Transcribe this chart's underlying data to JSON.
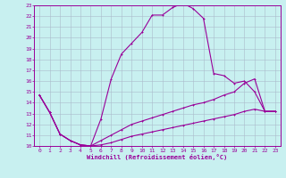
{
  "xlabel": "Windchill (Refroidissement éolien,°C)",
  "bg_color": "#c8f0f0",
  "line_color": "#990099",
  "grid_color": "#aabbcc",
  "xlim": [
    -0.5,
    23.5
  ],
  "ylim": [
    10,
    23
  ],
  "xticks": [
    0,
    1,
    2,
    3,
    4,
    5,
    6,
    7,
    8,
    9,
    10,
    11,
    12,
    13,
    14,
    15,
    16,
    17,
    18,
    19,
    20,
    21,
    22,
    23
  ],
  "yticks": [
    10,
    11,
    12,
    13,
    14,
    15,
    16,
    17,
    18,
    19,
    20,
    21,
    22,
    23
  ],
  "curve1_x": [
    0,
    1,
    2,
    3,
    4,
    5,
    6,
    7,
    8,
    9,
    10,
    11,
    12,
    13,
    14,
    15,
    16,
    17,
    18,
    19,
    20,
    21,
    22,
    23
  ],
  "curve1_y": [
    14.7,
    13.1,
    11.1,
    10.5,
    10.1,
    10.0,
    12.5,
    16.2,
    18.5,
    19.5,
    20.5,
    22.1,
    22.1,
    22.8,
    23.2,
    22.7,
    21.8,
    16.7,
    16.5,
    15.8,
    16.0,
    15.0,
    13.2,
    13.2
  ],
  "curve2_x": [
    0,
    1,
    2,
    3,
    4,
    5,
    6,
    7,
    8,
    9,
    10,
    11,
    12,
    13,
    14,
    15,
    16,
    17,
    18,
    19,
    20,
    21,
    22,
    23
  ],
  "curve2_y": [
    14.7,
    13.1,
    11.1,
    10.5,
    10.1,
    10.0,
    10.5,
    11.0,
    11.5,
    12.0,
    12.3,
    12.6,
    12.9,
    13.2,
    13.5,
    13.8,
    14.0,
    14.3,
    14.7,
    15.0,
    15.8,
    16.2,
    13.2,
    13.2
  ],
  "curve3_x": [
    0,
    1,
    2,
    3,
    4,
    5,
    6,
    7,
    8,
    9,
    10,
    11,
    12,
    13,
    14,
    15,
    16,
    17,
    18,
    19,
    20,
    21,
    22,
    23
  ],
  "curve3_y": [
    14.7,
    13.1,
    11.1,
    10.5,
    10.1,
    10.0,
    10.1,
    10.3,
    10.6,
    10.9,
    11.1,
    11.3,
    11.5,
    11.7,
    11.9,
    12.1,
    12.3,
    12.5,
    12.7,
    12.9,
    13.2,
    13.4,
    13.2,
    13.2
  ]
}
